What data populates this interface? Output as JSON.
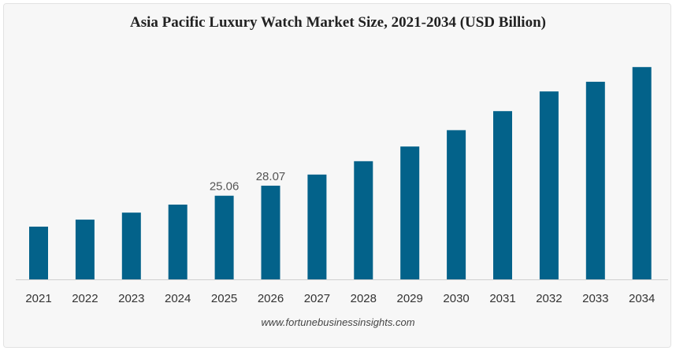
{
  "chart_data": {
    "type": "bar",
    "title": "Asia Pacific Luxury Watch Market Size, 2021-2034 (USD Billion)",
    "categories": [
      "2021",
      "2022",
      "2023",
      "2024",
      "2025",
      "2026",
      "2027",
      "2028",
      "2029",
      "2030",
      "2031",
      "2032",
      "2033",
      "2034"
    ],
    "values": [
      15.8,
      17.9,
      20.0,
      22.4,
      25.06,
      28.07,
      31.4,
      35.4,
      39.8,
      44.7,
      50.4,
      56.3,
      59.2,
      63.6
    ],
    "data_labels": {
      "2025": "25.06",
      "2026": "28.07"
    },
    "xlabel": "",
    "ylabel": "",
    "ylim": [
      0,
      66
    ],
    "grid": false,
    "bar_color": "#03628a",
    "source": "www.fortunebusinessinsights.com"
  }
}
